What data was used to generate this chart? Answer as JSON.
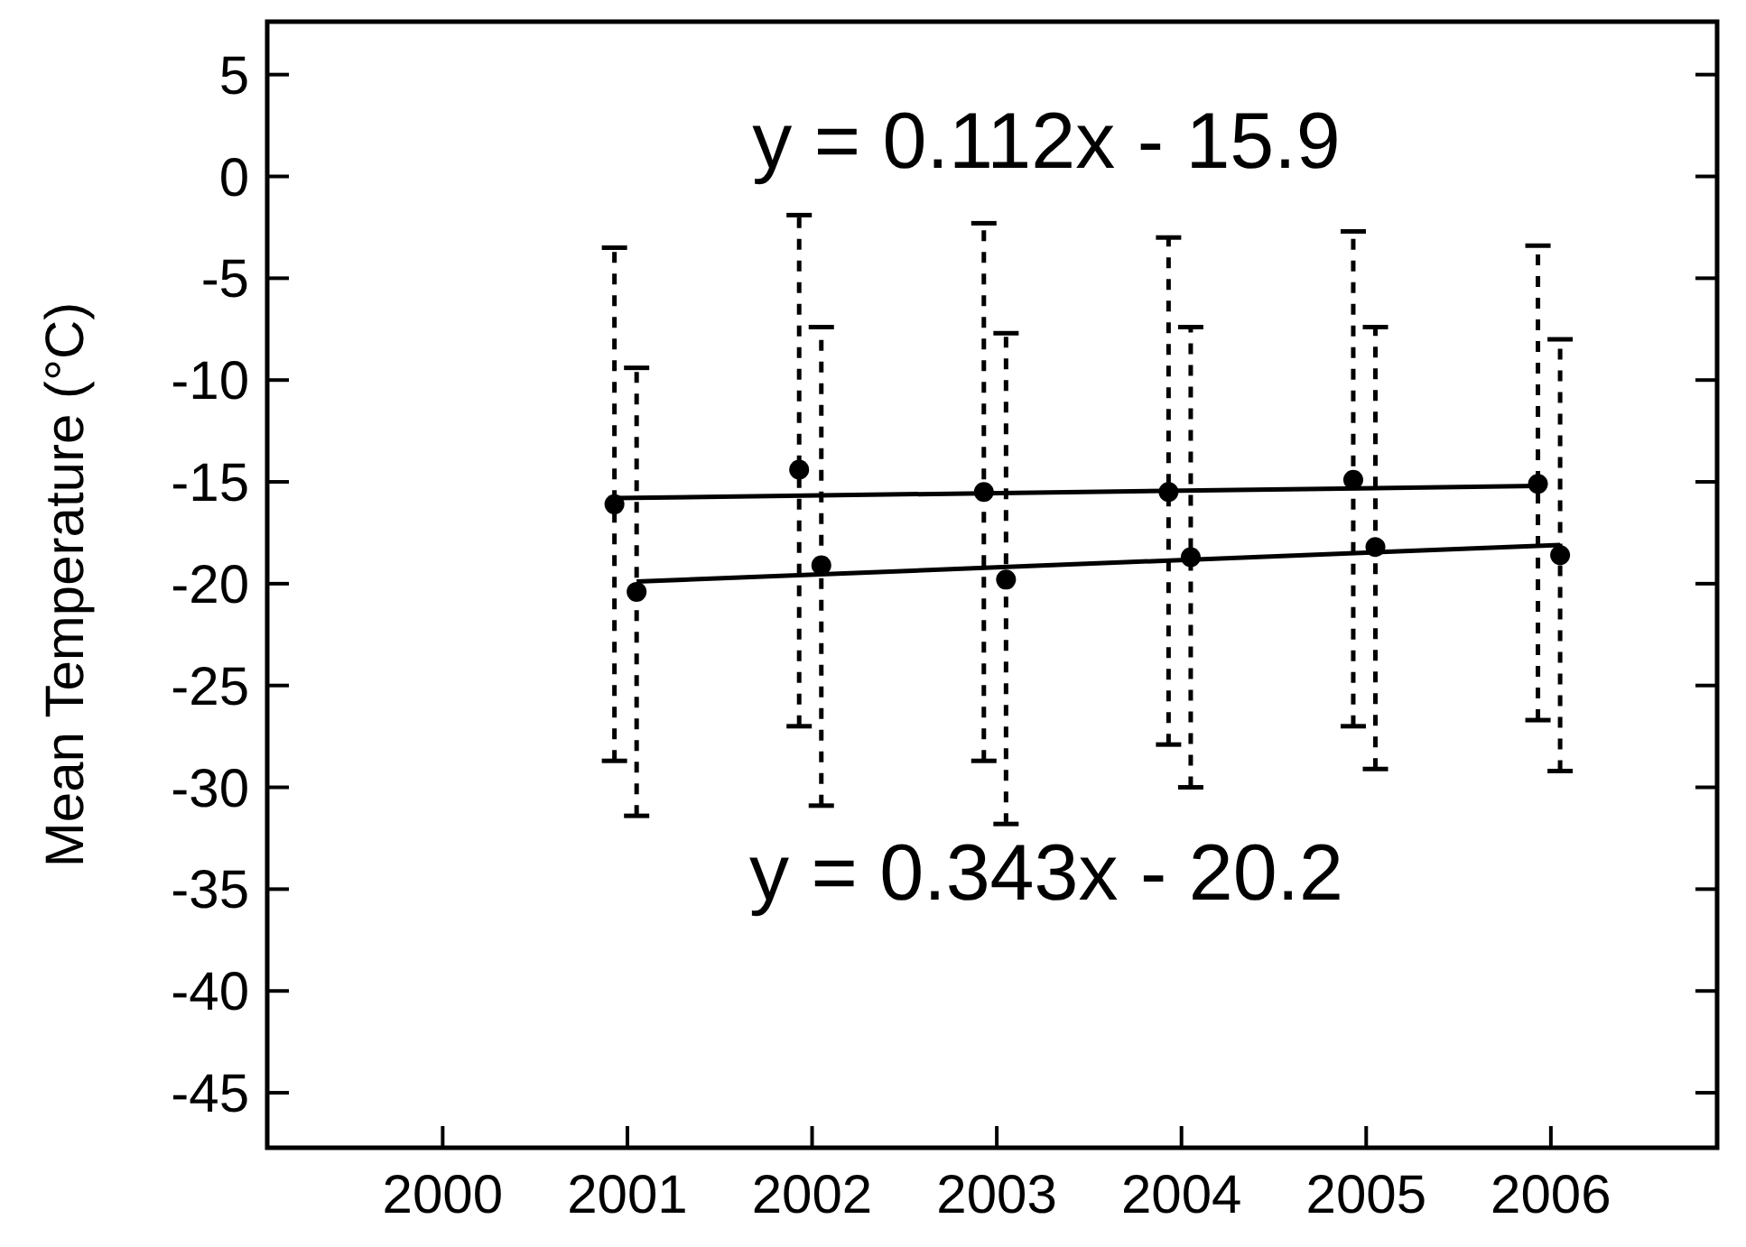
{
  "chart_data": {
    "type": "scatter",
    "ylabel": "Mean Temperature (°C)",
    "xlim": [
      1999.05,
      2006.9
    ],
    "xticks": [
      2000,
      2001,
      2002,
      2003,
      2004,
      2005,
      2006
    ],
    "ylim": [
      -47.7,
      7.6
    ],
    "yticks": [
      5,
      0,
      -5,
      -10,
      -15,
      -20,
      -25,
      -30,
      -35,
      -40,
      -45
    ],
    "grid": false,
    "marker": "circle",
    "series": [
      {
        "color": "#000000",
        "x": [
          2000.93,
          2001.93,
          2002.93,
          2003.93,
          2004.93,
          2005.93
        ],
        "values": [
          -16.1,
          -14.4,
          -15.5,
          -15.5,
          -14.9,
          -15.1
        ],
        "errors": [
          [
            -28.7,
            -3.5
          ],
          [
            -27.0,
            -1.9
          ],
          [
            -28.7,
            -2.3
          ],
          [
            -27.9,
            -3.0
          ],
          [
            -27.0,
            -2.7
          ],
          [
            -26.7,
            -3.4
          ]
        ]
      },
      {
        "color": "#000000",
        "x": [
          2001.05,
          2002.05,
          2003.05,
          2004.05,
          2005.05,
          2006.05
        ],
        "values": [
          -20.4,
          -19.1,
          -19.8,
          -18.7,
          -18.2,
          -18.6
        ],
        "errors": [
          [
            -31.4,
            -9.4
          ],
          [
            -30.9,
            -7.4
          ],
          [
            -31.8,
            -7.7
          ],
          [
            -30.0,
            -7.4
          ],
          [
            -29.1,
            -7.4
          ],
          [
            -29.2,
            -8.0
          ]
        ]
      },
      {
        "type": "line",
        "color": "#000000",
        "line_style": "solid",
        "marker": "none",
        "x": [
          2000.93,
          2005.93
        ],
        "values": [
          -15.8,
          -15.2
        ]
      },
      {
        "type": "line",
        "color": "#000000",
        "line_style": "solid",
        "marker": "none",
        "x": [
          2001.05,
          2006.05
        ],
        "values": [
          -19.9,
          -18.1
        ]
      }
    ],
    "annotations": [
      "y = 0.112x - 15.9",
      "y = 0.343x - 20.2"
    ]
  }
}
